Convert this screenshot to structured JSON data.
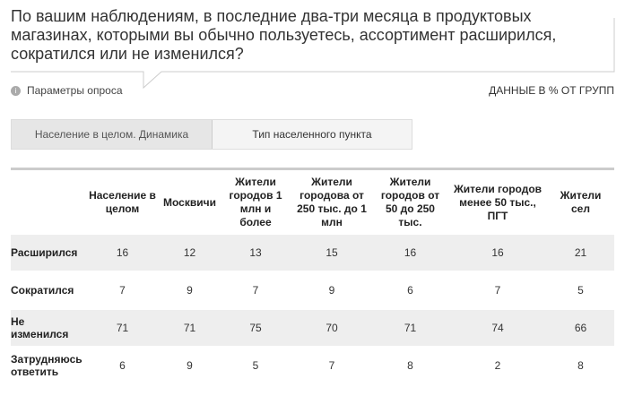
{
  "title": "По вашим наблюдениям, в последние два-три месяца в продуктовых магазинах, которыми вы обычно пользуетесь, ассортимент расширился, сократился или не изменился?",
  "params_label": "Параметры опроса",
  "units_note": "ДАННЫЕ В % ОТ ГРУПП",
  "tabs": [
    "Население в целом. Динамика",
    "Тип населенного пункта"
  ],
  "table": {
    "columns": [
      "Население в целом",
      "Москвичи",
      "Жители городов 1 млн и более",
      "Жители городова от 250 тыс. до 1 млн",
      "Жители городов от 50 до 250 тыс.",
      "Жители городов менее 50 тыс., ПГТ",
      "Жители сел"
    ],
    "rows": [
      {
        "label": "Расширился",
        "values": [
          "16",
          "12",
          "13",
          "15",
          "16",
          "16",
          "21"
        ]
      },
      {
        "label": "Сократился",
        "values": [
          "7",
          "9",
          "7",
          "9",
          "6",
          "7",
          "5"
        ]
      },
      {
        "label": "Не изменился",
        "values": [
          "71",
          "71",
          "75",
          "70",
          "71",
          "74",
          "66"
        ]
      },
      {
        "label": "Затрудняюсь ответить",
        "values": [
          "6",
          "9",
          "5",
          "7",
          "8",
          "2",
          "8"
        ]
      }
    ]
  }
}
